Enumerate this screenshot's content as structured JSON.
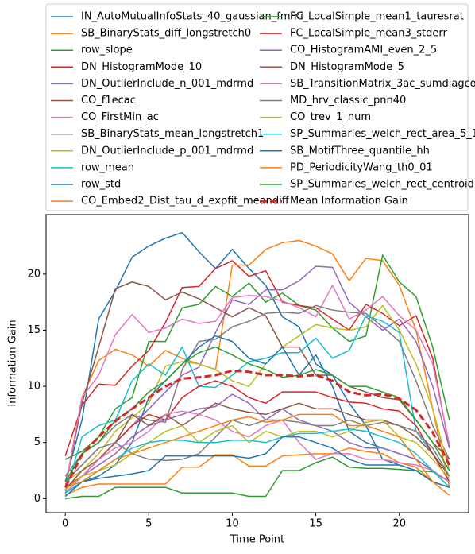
{
  "chart_data": {
    "type": "line",
    "x_label": "Time Point",
    "y_label": "Information Gain",
    "x": [
      0,
      1,
      2,
      3,
      4,
      5,
      6,
      7,
      8,
      9,
      10,
      11,
      12,
      13,
      14,
      15,
      16,
      17,
      18,
      19,
      20,
      21,
      22,
      23
    ],
    "xlim": [
      -1.15,
      24.15
    ],
    "xticks": [
      0,
      5,
      10,
      15,
      20
    ],
    "ylim": [
      -1.25,
      25.3
    ],
    "yticks": [
      0,
      5,
      10,
      15,
      20
    ],
    "legend": "top",
    "series": [
      {
        "name": "IN_AutoMutualInfoStats_40_gaussian_fmmi",
        "color": "#1f77b4",
        "values": [
          1.5,
          7.0,
          16.0,
          18.5,
          21.5,
          22.5,
          23.2,
          23.7,
          22.0,
          20.5,
          22.2,
          20.5,
          19.0,
          16.2,
          15.3,
          12.0,
          11.0,
          8.5,
          6.5,
          3.5,
          3.0,
          2.5,
          1.5,
          1.0
        ]
      },
      {
        "name": "SB_BinaryStats_diff_longstretch0",
        "color": "#ff7f0e",
        "values": [
          1.0,
          9.0,
          12.3,
          13.3,
          12.8,
          11.8,
          13.2,
          12.5,
          12.0,
          11.5,
          20.8,
          20.8,
          22.2,
          22.8,
          23.0,
          22.5,
          21.8,
          19.4,
          21.4,
          21.2,
          19.0,
          15.0,
          8.0,
          1.0
        ]
      },
      {
        "name": "row_slope",
        "color": "#2ca02c",
        "values": [
          3.5,
          4.2,
          5.5,
          8.0,
          9.0,
          14.0,
          14.0,
          17.0,
          17.3,
          18.9,
          18.0,
          19.2,
          17.5,
          18.3,
          17.2,
          16.8,
          15.2,
          14.0,
          14.5,
          21.7,
          19.3,
          18.0,
          13.5,
          7.0
        ]
      },
      {
        "name": "DN_HistogramMode_10",
        "color": "#d62728",
        "values": [
          3.8,
          8.3,
          10.2,
          10.1,
          11.8,
          13.2,
          15.7,
          18.8,
          18.9,
          20.5,
          21.2,
          19.8,
          20.3,
          17.5,
          17.2,
          17.0,
          16.0,
          15.0,
          17.3,
          16.5,
          15.4,
          16.3,
          12.5,
          4.5
        ]
      },
      {
        "name": "DN_OutlierInclude_n_001_mdrmd",
        "color": "#9467bd",
        "values": [
          1.5,
          3.0,
          4.5,
          5.0,
          6.5,
          8.0,
          9.5,
          11.0,
          11.7,
          14.8,
          17.7,
          17.3,
          18.6,
          18.6,
          19.4,
          20.7,
          20.6,
          17.5,
          16.2,
          15.0,
          16.0,
          14.0,
          10.0,
          4.5
        ]
      },
      {
        "name": "CO_f1ecac",
        "color": "#8c564b",
        "values": [
          1.0,
          8.5,
          13.5,
          18.7,
          19.3,
          18.9,
          17.7,
          18.4,
          17.8,
          17.0,
          16.2,
          17.0,
          16.3,
          13.5,
          13.5,
          11.0,
          11.0,
          10.0,
          9.5,
          9.0,
          8.8,
          7.0,
          5.0,
          3.5
        ]
      },
      {
        "name": "CO_FirstMin_ac",
        "color": "#e377c2",
        "values": [
          1.0,
          9.0,
          11.0,
          14.6,
          16.4,
          14.8,
          15.2,
          16.0,
          15.6,
          15.8,
          17.9,
          18.1,
          18.0,
          17.6,
          17.0,
          16.2,
          19.0,
          16.0,
          16.8,
          18.0,
          16.3,
          15.0,
          12.0,
          4.8
        ]
      },
      {
        "name": "SB_BinaryStats_mean_longstretch1",
        "color": "#7f7f7f",
        "values": [
          2.0,
          4.0,
          5.0,
          6.5,
          7.5,
          7.0,
          6.8,
          11.5,
          14.0,
          14.2,
          15.3,
          15.8,
          16.5,
          16.6,
          16.5,
          17.2,
          16.8,
          16.6,
          16.5,
          15.3,
          14.0,
          10.5,
          6.5,
          3.5
        ]
      },
      {
        "name": "DN_OutlierInclude_p_001_mdrmd",
        "color": "#bcbd22",
        "values": [
          1.5,
          2.5,
          4.0,
          6.0,
          7.2,
          8.5,
          11.8,
          12.2,
          12.0,
          11.5,
          10.5,
          10.0,
          12.0,
          13.5,
          14.5,
          15.5,
          15.2,
          15.0,
          15.3,
          17.2,
          15.0,
          12.0,
          8.0,
          2.5
        ]
      },
      {
        "name": "row_mean",
        "color": "#17becf",
        "values": [
          0.5,
          5.5,
          6.5,
          7.0,
          10.5,
          12.0,
          11.0,
          13.5,
          10.0,
          9.9,
          11.0,
          12.2,
          12.5,
          13.0,
          13.0,
          14.3,
          12.5,
          13.2,
          16.3,
          15.8,
          14.8,
          6.0,
          4.0,
          2.0
        ]
      },
      {
        "name": "row_std",
        "color": "#1f77b4",
        "values": [
          0.5,
          1.5,
          2.0,
          3.0,
          5.0,
          9.0,
          10.5,
          12.0,
          13.5,
          14.5,
          14.0,
          12.5,
          12.0,
          13.5,
          11.0,
          12.8,
          10.0,
          6.0,
          5.0,
          4.5,
          4.0,
          3.5,
          2.5,
          1.5
        ]
      },
      {
        "name": "CO_Embed2_Dist_tau_d_expfit_meandiff",
        "color": "#ff7f0e",
        "values": [
          0.3,
          1.0,
          1.3,
          1.3,
          1.3,
          1.3,
          1.3,
          2.8,
          2.8,
          3.9,
          3.9,
          2.9,
          2.9,
          3.8,
          3.9,
          4.0,
          4.0,
          4.5,
          4.2,
          4.0,
          3.2,
          2.8,
          1.5,
          1.0
        ]
      },
      {
        "name": "FC_LocalSimple_mean1_tauresrat",
        "color": "#2ca02c",
        "values": [
          0,
          0.2,
          0.2,
          1.0,
          1.0,
          1.0,
          1.0,
          0.5,
          0.5,
          0.5,
          0.5,
          0.2,
          0.2,
          2.5,
          2.5,
          3.2,
          3.7,
          2.8,
          2.7,
          2.7,
          2.6,
          2.5,
          2.4,
          1.5
        ]
      },
      {
        "name": "FC_LocalSimple_mean3_stderr",
        "color": "#d62728",
        "values": [
          1.0,
          2.0,
          3.5,
          5.0,
          6.5,
          7.5,
          7.0,
          9.0,
          10.0,
          10.5,
          10.0,
          9.0,
          8.5,
          9.5,
          9.5,
          9.5,
          9.0,
          8.6,
          8.5,
          8.0,
          7.8,
          6.5,
          4.0,
          1.5
        ]
      },
      {
        "name": "CO_HistogramAMI_even_2_5",
        "color": "#9467bd",
        "values": [
          0.5,
          2.0,
          3.0,
          4.0,
          5.5,
          6.5,
          7.0,
          7.5,
          8.0,
          8.2,
          9.3,
          8.5,
          7.0,
          8.0,
          7.0,
          6.5,
          6.0,
          5.0,
          4.5,
          4.5,
          4.0,
          3.5,
          2.5,
          1.0
        ]
      },
      {
        "name": "DN_HistogramMode_5",
        "color": "#8c564b",
        "values": [
          0.8,
          2.5,
          3.5,
          5.0,
          7.5,
          6.5,
          7.5,
          6.5,
          7.5,
          8.5,
          8.0,
          7.7,
          7.5,
          8.0,
          8.5,
          8.0,
          8.0,
          7.5,
          7.0,
          7.0,
          6.5,
          5.5,
          4.0,
          2.0
        ]
      },
      {
        "name": "SB_TransitionMatrix_3ac_sumdiagcov",
        "color": "#e377c2",
        "values": [
          0.5,
          2.0,
          3.5,
          4.5,
          5.0,
          6.0,
          7.5,
          7.8,
          7.5,
          7.0,
          6.0,
          5.5,
          6.5,
          7.0,
          5.0,
          3.5,
          4.0,
          4.0,
          3.5,
          3.5,
          3.2,
          3.0,
          2.5,
          1.5
        ]
      },
      {
        "name": "MD_hrv_classic_pnn40",
        "color": "#7f7f7f",
        "values": [
          1.5,
          3.0,
          4.5,
          5.0,
          4.0,
          3.5,
          3.4,
          3.5,
          4.0,
          5.5,
          7.0,
          6.5,
          7.0,
          7.0,
          6.8,
          6.5,
          6.5,
          7.0,
          6.5,
          6.8,
          6.5,
          6.0,
          4.5,
          2.0
        ]
      },
      {
        "name": "CO_trev_1_num",
        "color": "#bcbd22",
        "values": [
          0.8,
          2.0,
          2.5,
          3.0,
          4.0,
          5.0,
          6.0,
          6.5,
          5.0,
          6.0,
          6.5,
          5.0,
          6.0,
          5.5,
          6.0,
          6.0,
          5.5,
          6.0,
          6.8,
          7.0,
          5.5,
          5.0,
          3.5,
          1.8
        ]
      },
      {
        "name": "SP_Summaries_welch_rect_area_5_1",
        "color": "#17becf",
        "values": [
          0.5,
          1.5,
          2.5,
          3.5,
          4.5,
          5.0,
          5.2,
          5.2,
          5.0,
          5.0,
          5.2,
          5.2,
          5.0,
          5.5,
          5.8,
          5.8,
          6.0,
          6.2,
          6.0,
          5.5,
          5.0,
          4.0,
          2.5,
          1.0
        ]
      },
      {
        "name": "SB_MotifThree_quantile_hh",
        "color": "#1f77b4",
        "values": [
          0.2,
          1.5,
          1.8,
          2.0,
          2.2,
          2.5,
          3.8,
          3.8,
          3.8,
          3.8,
          3.8,
          3.6,
          4.0,
          5.5,
          5.5,
          5.0,
          4.5,
          3.5,
          3.0,
          3.0,
          3.0,
          2.5,
          1.5,
          1.0
        ]
      },
      {
        "name": "PD_PeriodicityWang_th0_01",
        "color": "#ff7f0e",
        "values": [
          1.0,
          1.5,
          2.5,
          3.5,
          4.0,
          4.5,
          5.0,
          5.5,
          6.0,
          6.5,
          7.0,
          7.3,
          6.8,
          7.0,
          7.5,
          7.5,
          7.5,
          6.5,
          6.5,
          6.0,
          5.5,
          3.5,
          1.5,
          0.3
        ]
      },
      {
        "name": "SP_Summaries_welch_rect_centroid",
        "color": "#2ca02c",
        "values": [
          1.5,
          4.0,
          5.0,
          7.0,
          8.0,
          9.5,
          10.5,
          12.0,
          13.0,
          13.5,
          12.8,
          12.0,
          11.5,
          10.8,
          11.0,
          11.5,
          11.0,
          10.0,
          10.0,
          9.5,
          9.0,
          7.0,
          5.0,
          2.5
        ]
      },
      {
        "name": "Mean Information Gain",
        "color": "#d62728",
        "dashed": true,
        "values": [
          1.0,
          3.9,
          5.5,
          6.9,
          8.0,
          9.0,
          10.0,
          10.7,
          10.8,
          11.0,
          11.4,
          11.3,
          11.0,
          11.0,
          10.9,
          11.0,
          10.5,
          9.5,
          9.2,
          9.3,
          8.9,
          7.9,
          5.9,
          3.0
        ]
      }
    ]
  }
}
